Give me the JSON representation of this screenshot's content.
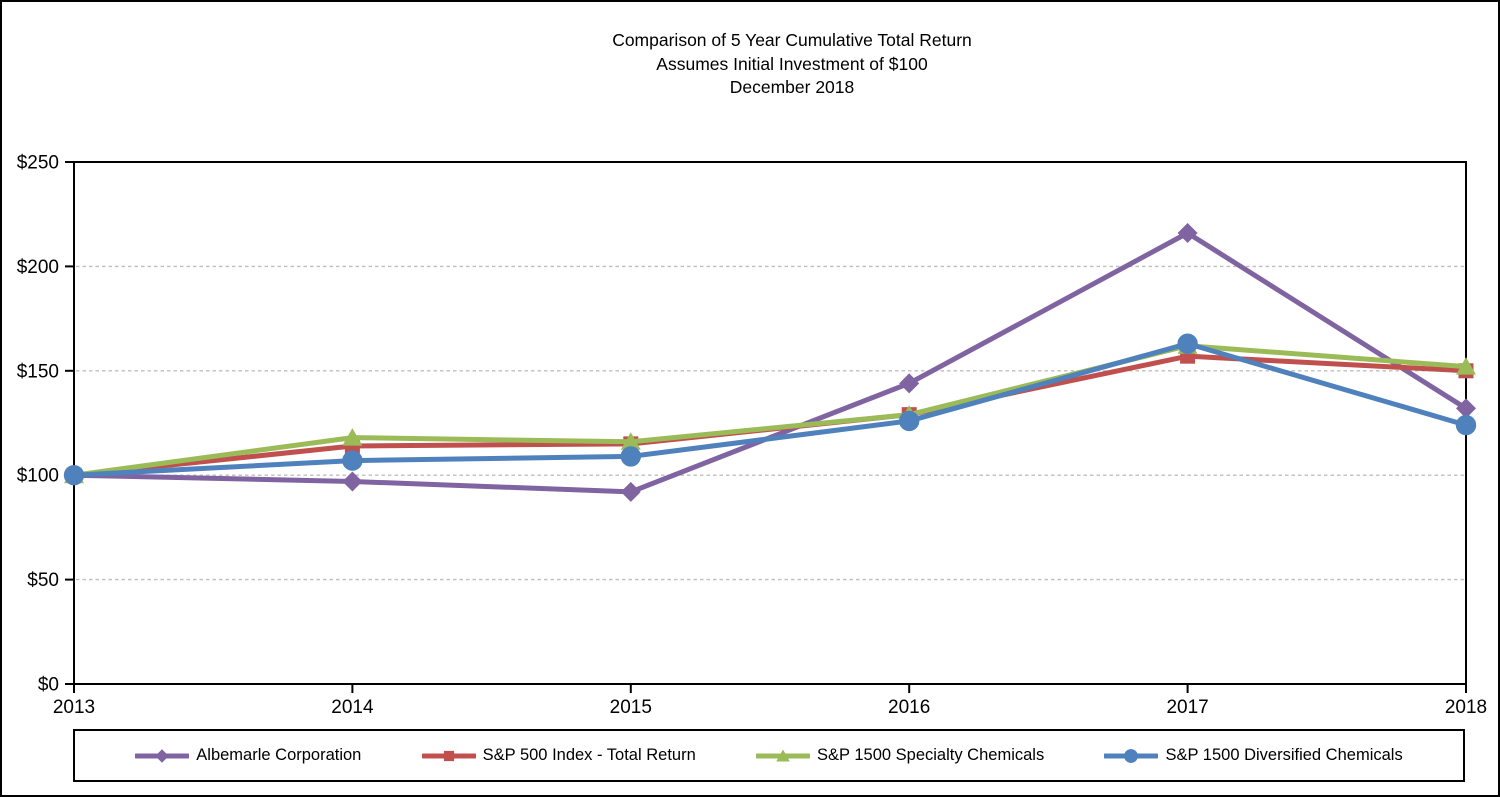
{
  "title": {
    "line1": "Comparison of 5 Year Cumulative Total Return",
    "line2": "Assumes Initial Investment of $100",
    "line3": "December 2018"
  },
  "chart_data": {
    "type": "line",
    "x": [
      2013,
      2014,
      2015,
      2016,
      2017,
      2018
    ],
    "x_labels": [
      "2013",
      "2014",
      "2015",
      "2016",
      "2017",
      "2018"
    ],
    "ylim": [
      0,
      250
    ],
    "ytick_step": 50,
    "ytick_labels": [
      "$0",
      "$50",
      "$100",
      "$150",
      "$200",
      "$250"
    ],
    "grid": "horizontal dashed at 50,100,150,200",
    "legend_position": "bottom",
    "series": [
      {
        "name": "Albemarle Corporation",
        "color": "#8064A2",
        "marker": "diamond",
        "values": [
          100,
          97,
          92,
          144,
          216,
          132
        ]
      },
      {
        "name": "S&P 500 Index - Total Return",
        "color": "#C0504D",
        "marker": "square",
        "values": [
          100,
          114,
          115,
          129,
          157,
          150
        ]
      },
      {
        "name": "S&P 1500 Specialty Chemicals",
        "color": "#9BBB59",
        "marker": "triangle",
        "values": [
          100,
          118,
          116,
          129,
          162,
          152
        ]
      },
      {
        "name": "S&P 1500 Diversified Chemicals",
        "color": "#4F81BD",
        "marker": "circle",
        "values": [
          100,
          107,
          109,
          126,
          163,
          124
        ]
      }
    ],
    "colors": {
      "axis": "#000000",
      "gridline": "#bfbfbf",
      "background": "#ffffff"
    }
  }
}
